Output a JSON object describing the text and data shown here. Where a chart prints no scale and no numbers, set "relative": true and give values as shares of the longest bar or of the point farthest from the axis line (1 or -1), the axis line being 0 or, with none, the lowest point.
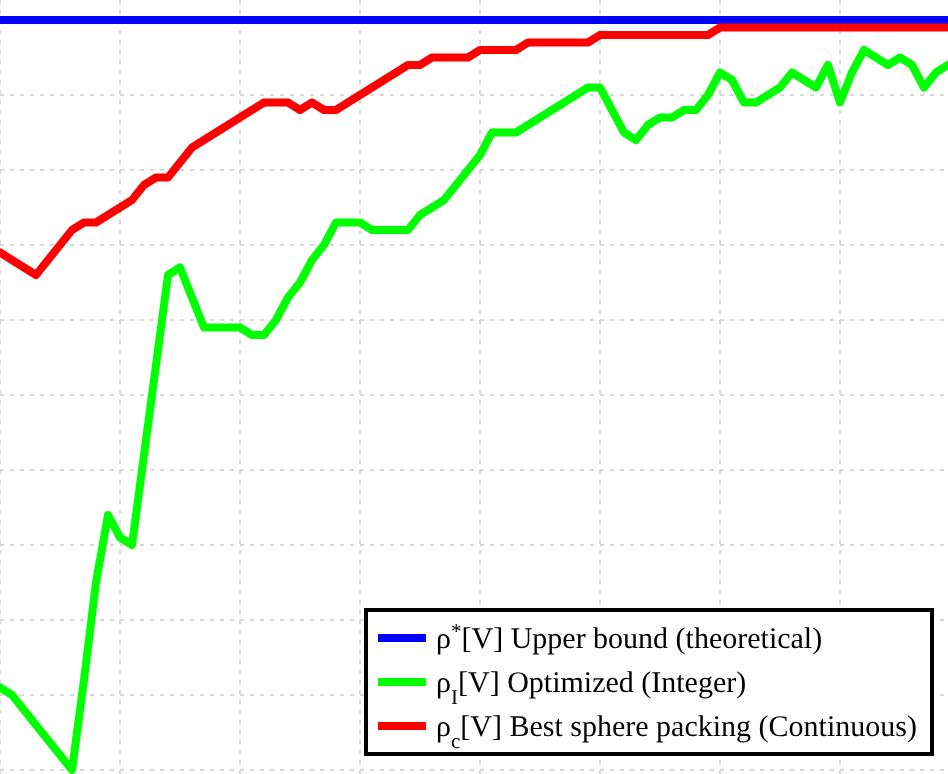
{
  "chart_data": {
    "type": "line",
    "relative": true,
    "grid": true,
    "legend": "bottom right",
    "categories": [
      null,
      null,
      null,
      null,
      null,
      null,
      null,
      null,
      null,
      null,
      null,
      null,
      null,
      null,
      null,
      null,
      null,
      null,
      null,
      null,
      null,
      null,
      null,
      null,
      null,
      null,
      null,
      null,
      null,
      null,
      null,
      null,
      null,
      null,
      null,
      null,
      null,
      null,
      null,
      null,
      null,
      null,
      null,
      null,
      null,
      null,
      null,
      null,
      null,
      null,
      null,
      null,
      null,
      null,
      null,
      null,
      null,
      null,
      null,
      null,
      null,
      null,
      null,
      null,
      null,
      null,
      null,
      null,
      null,
      null,
      null,
      null,
      null,
      null,
      null,
      null,
      null,
      null,
      null,
      null
    ],
    "series": [
      {
        "name": "ρ$^{*}$[V] Upper bound (theoretical)",
        "color": "#0000ff",
        "values": [
          1,
          1,
          1,
          1,
          1,
          1,
          1,
          1,
          1,
          1,
          1,
          1,
          1,
          1,
          1,
          1,
          1,
          1,
          1,
          1,
          1,
          1,
          1,
          1,
          1,
          1,
          1,
          1,
          1,
          1,
          1,
          1,
          1,
          1,
          1,
          1,
          1,
          1,
          1,
          1,
          1,
          1,
          1,
          1,
          1,
          1,
          1,
          1,
          1,
          1,
          1,
          1,
          1,
          1,
          1,
          1,
          1,
          1,
          1,
          1,
          1,
          1,
          1,
          1,
          1,
          1,
          1,
          1,
          1,
          1,
          1,
          1,
          1,
          1,
          1,
          1,
          1,
          1,
          1,
          1
        ]
      },
      {
        "name": "ρ$_{I}$[V] Optimized (Integer)",
        "color": "#00ff00",
        "values": [
          0.11,
          0.1,
          0.08,
          0.06,
          0.04,
          0.02,
          0,
          0.12,
          0.25,
          0.34,
          0.31,
          0.3,
          0.42,
          0.54,
          0.66,
          0.67,
          0.63,
          0.59,
          0.59,
          0.59,
          0.59,
          0.58,
          0.58,
          0.6,
          0.63,
          0.65,
          0.68,
          0.7,
          0.73,
          0.73,
          0.73,
          0.72,
          0.72,
          0.72,
          0.72,
          0.74,
          0.75,
          0.76,
          0.78,
          0.8,
          0.82,
          0.85,
          0.85,
          0.85,
          0.86,
          0.87,
          0.88,
          0.89,
          0.9,
          0.91,
          0.91,
          0.88,
          0.85,
          0.84,
          0.86,
          0.87,
          0.87,
          0.88,
          0.88,
          0.9,
          0.93,
          0.92,
          0.89,
          0.89,
          0.9,
          0.91,
          0.93,
          0.92,
          0.91,
          0.94,
          0.89,
          0.93,
          0.96,
          0.95,
          0.94,
          0.95,
          0.94,
          0.91,
          0.93,
          0.94
        ]
      },
      {
        "name": "ρ$_{c}$[V] Best sphere packing (Continuous)",
        "color": "#ff0000",
        "values": [
          0.69,
          0.68,
          0.67,
          0.66,
          0.68,
          0.7,
          0.72,
          0.73,
          0.73,
          0.74,
          0.75,
          0.76,
          0.78,
          0.79,
          0.79,
          0.81,
          0.83,
          0.84,
          0.85,
          0.86,
          0.87,
          0.88,
          0.89,
          0.89,
          0.89,
          0.88,
          0.89,
          0.88,
          0.88,
          0.89,
          0.9,
          0.91,
          0.92,
          0.93,
          0.94,
          0.94,
          0.95,
          0.95,
          0.95,
          0.95,
          0.96,
          0.96,
          0.96,
          0.96,
          0.97,
          0.97,
          0.97,
          0.97,
          0.97,
          0.97,
          0.98,
          0.98,
          0.98,
          0.98,
          0.98,
          0.98,
          0.98,
          0.98,
          0.98,
          0.98,
          0.99,
          0.99,
          0.99,
          0.99,
          0.99,
          0.99,
          0.99,
          0.99,
          0.99,
          0.99,
          0.99,
          0.99,
          0.99,
          0.99,
          0.99,
          0.99,
          0.99,
          0.99,
          0.99,
          0.99
        ]
      }
    ]
  }
}
